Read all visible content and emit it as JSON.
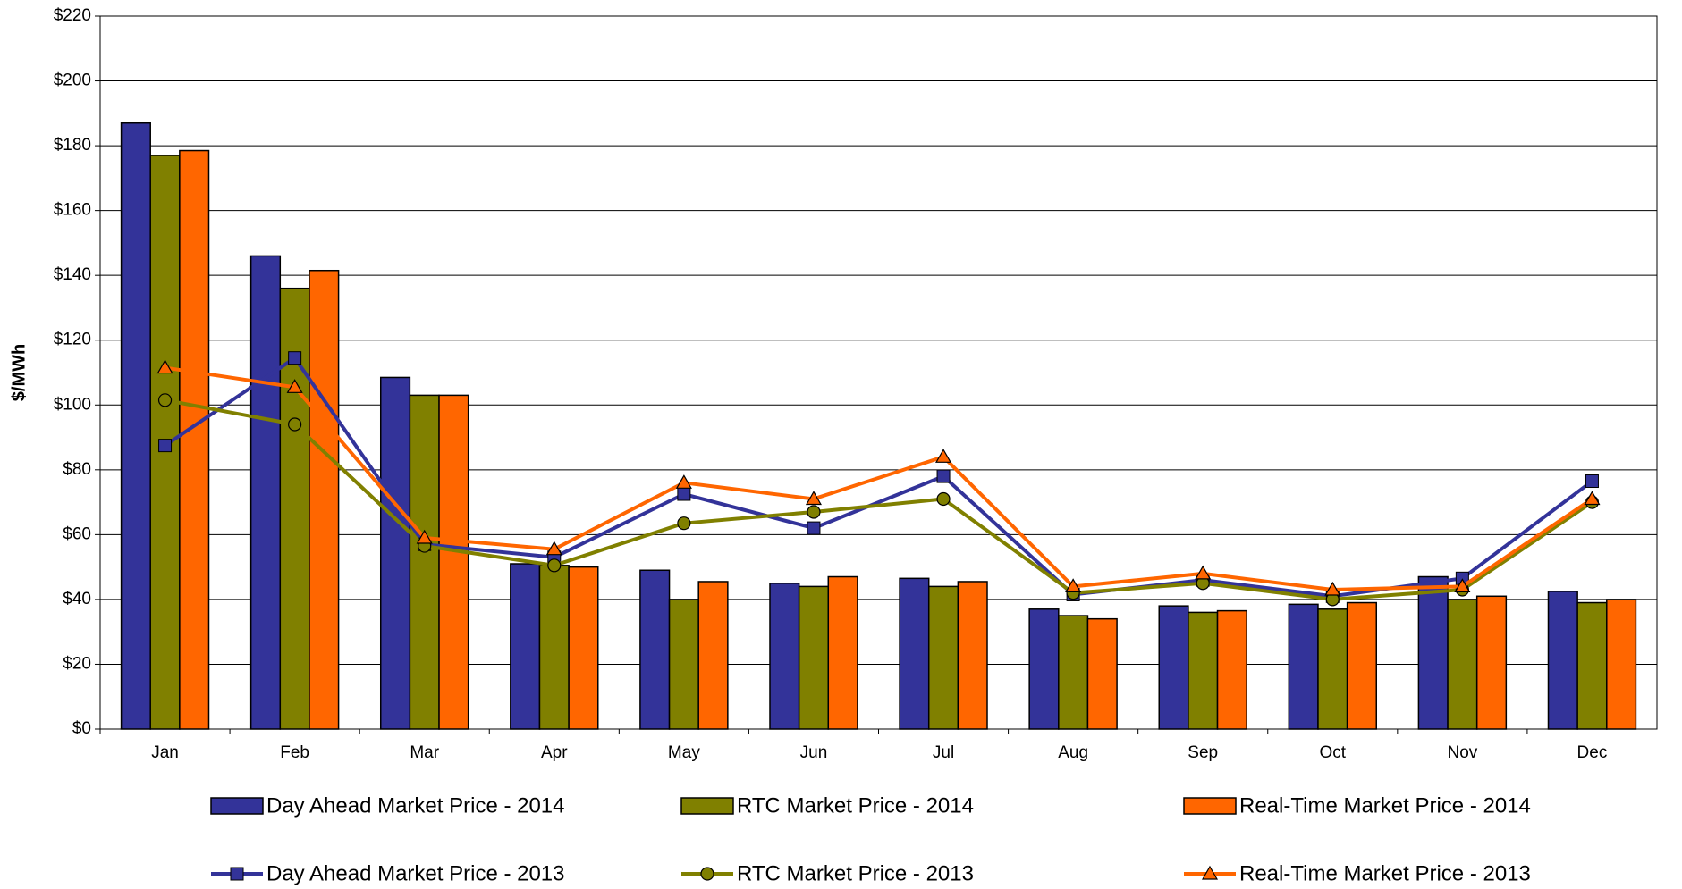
{
  "chart_data": {
    "type": "bar",
    "y_label": "$/MWh",
    "categories": [
      "Jan",
      "Feb",
      "Mar",
      "Apr",
      "May",
      "Jun",
      "Jul",
      "Aug",
      "Sep",
      "Oct",
      "Nov",
      "Dec"
    ],
    "ylim": [
      0,
      220
    ],
    "yticks": [
      {
        "value": 0,
        "label": "$0"
      },
      {
        "value": 20,
        "label": "$20"
      },
      {
        "value": 40,
        "label": "$40"
      },
      {
        "value": 60,
        "label": "$60"
      },
      {
        "value": 80,
        "label": "$80"
      },
      {
        "value": 100,
        "label": "$100"
      },
      {
        "value": 120,
        "label": "$120"
      },
      {
        "value": 140,
        "label": "$140"
      },
      {
        "value": 160,
        "label": "$160"
      },
      {
        "value": 180,
        "label": "$180"
      },
      {
        "value": 200,
        "label": "$200"
      },
      {
        "value": 220,
        "label": "$220"
      }
    ],
    "grid": true,
    "legend": "bottom",
    "series": [
      {
        "name": "Day Ahead Market Price - 2014",
        "type": "bar",
        "color": "#333399",
        "values": [
          187,
          146,
          108.5,
          51,
          49,
          45,
          46.5,
          37,
          38,
          38.5,
          47,
          42.5
        ]
      },
      {
        "name": "RTC Market Price - 2014",
        "type": "bar",
        "color": "#808000",
        "values": [
          177,
          136,
          103,
          50.5,
          40,
          44,
          44,
          35,
          36,
          37,
          40,
          39
        ]
      },
      {
        "name": "Real-Time Market Price - 2014",
        "type": "bar",
        "color": "#ff6600",
        "values": [
          178.5,
          141.5,
          103,
          50,
          45.5,
          47,
          45.5,
          34,
          36.5,
          39,
          41,
          40
        ]
      },
      {
        "name": "Day Ahead Market Price - 2013",
        "type": "line",
        "marker": "square",
        "color": "#333399",
        "values": [
          87.5,
          114.5,
          57,
          53,
          72.5,
          62,
          78,
          41.5,
          46,
          41,
          46.5,
          76.5
        ]
      },
      {
        "name": "RTC Market Price - 2013",
        "type": "line",
        "marker": "circle",
        "color": "#808000",
        "values": [
          101.5,
          94,
          56.5,
          50.5,
          63.5,
          67,
          71,
          42,
          45,
          40,
          43,
          70
        ]
      },
      {
        "name": "Real-Time Market Price - 2013",
        "type": "line",
        "marker": "triangle",
        "color": "#ff6600",
        "values": [
          111.5,
          105.5,
          59,
          55.5,
          76,
          71,
          84,
          44,
          48,
          43,
          44,
          71
        ]
      }
    ]
  }
}
